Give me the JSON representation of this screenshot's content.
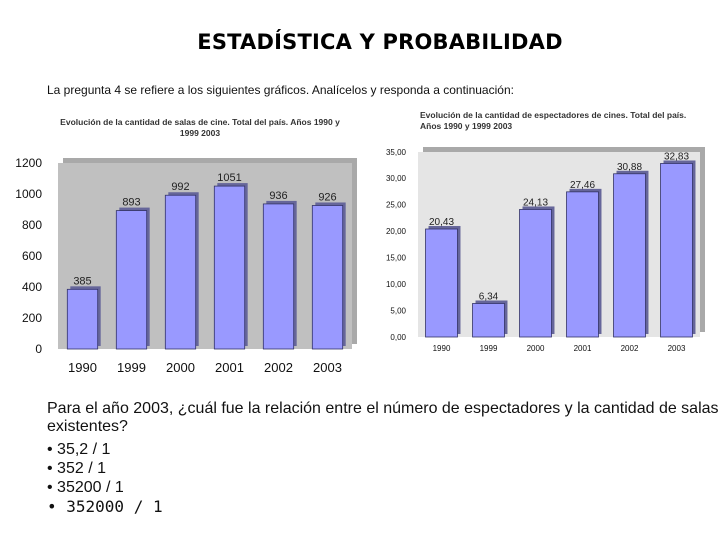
{
  "title": "ESTADÍSTICA Y PROBABILIDAD",
  "intro": "La pregunta 4 se refiere a los siguientes gráficos. Analícelos y responda a continuación:",
  "question": "Para el año 2003, ¿cuál fue la relación entre el número de espectadores y la cantidad de salas existentes?",
  "options": [
    "• 35,2 / 1",
    "• 352 / 1",
    "• 35200 / 1",
    "• 352000 / 1"
  ],
  "chart_data": [
    {
      "type": "bar",
      "title": "Evolución de la cantidad de salas de cine. Total del país. Años 1990 y 1999 2003",
      "categories": [
        "1990",
        "1999",
        "2000",
        "2001",
        "2002",
        "2003"
      ],
      "values": [
        385,
        893,
        992,
        1051,
        936,
        926
      ],
      "value_labels": [
        "385",
        "893",
        "992",
        "1051",
        "936",
        "926"
      ],
      "yticks": [
        "0",
        "200",
        "400",
        "600",
        "800",
        "1000",
        "1200"
      ],
      "ylim": [
        0,
        1200
      ],
      "bar_color": "#9999ff",
      "plot_bg": "#c0c0c0"
    },
    {
      "type": "bar",
      "title": "Evolución de la cantidad de espectadores de cines. Total del país. Años 1990 y 1999 2003",
      "categories": [
        "1990",
        "1999",
        "2000",
        "2001",
        "2002",
        "2003"
      ],
      "values": [
        20.43,
        6.34,
        24.13,
        27.46,
        30.88,
        32.83
      ],
      "value_labels": [
        "20,43",
        "6,34",
        "24,13",
        "27,46",
        "30,88",
        "32,83"
      ],
      "yticks": [
        "0,00",
        "5,00",
        "10,00",
        "15,00",
        "20,00",
        "25,00",
        "30,00",
        "35,00"
      ],
      "ylim": [
        0,
        35
      ],
      "bar_color": "#9999ff",
      "plot_bg": "#e5e5e5"
    }
  ]
}
